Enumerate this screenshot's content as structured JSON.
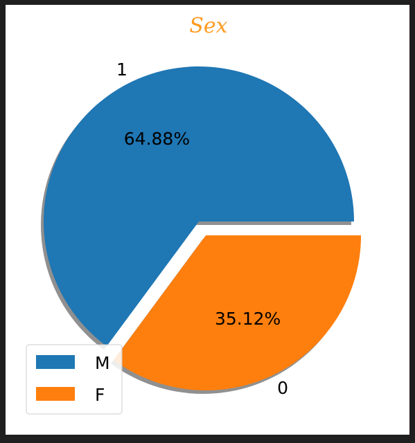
{
  "chart_data": {
    "type": "pie",
    "title": "Sex",
    "categories": [
      "1",
      "0"
    ],
    "values": [
      64.88,
      35.12
    ],
    "labels_pct": [
      "64.88%",
      "35.12%"
    ],
    "colors": [
      "#1f77b4",
      "#ff7f0e"
    ],
    "title_color": "#ff9a1f",
    "explode": [
      0,
      0.1
    ],
    "shadow": true,
    "legend": {
      "position": "lower-left",
      "entries": [
        "M",
        "F"
      ]
    }
  }
}
